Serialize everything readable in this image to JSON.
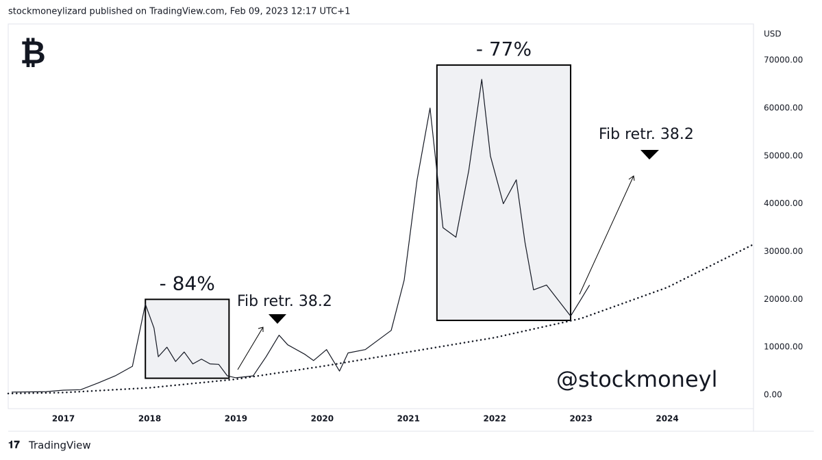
{
  "header": "stockmoneylizard published on TradingView.com, Feb 09, 2023 12:17 UTC+1",
  "footer": "TradingView",
  "symbol": "₿",
  "annotations": [
    "Fib retr. 38.2",
    "Fib retr. 38.2",
    "@stockmoneyl"
  ],
  "chart_data": {
    "type": "line",
    "y_unit": "USD",
    "x": [
      2016.4,
      2016.6,
      2016.8,
      2017.0,
      2017.2,
      2017.4,
      2017.6,
      2017.8,
      2017.95,
      2018.05,
      2018.1,
      2018.2,
      2018.3,
      2018.4,
      2018.5,
      2018.6,
      2018.7,
      2018.8,
      2018.9,
      2019.0,
      2019.2,
      2019.35,
      2019.5,
      2019.6,
      2019.8,
      2019.9,
      2020.05,
      2020.2,
      2020.3,
      2020.5,
      2020.65,
      2020.8,
      2020.95,
      2021.1,
      2021.25,
      2021.4,
      2021.55,
      2021.7,
      2021.85,
      2021.95,
      2022.1,
      2022.25,
      2022.35,
      2022.45,
      2022.6,
      2022.75,
      2022.88,
      2023.0,
      2023.1
    ],
    "series": [
      {
        "color": "#131722",
        "style": "solid",
        "x": "x",
        "values": [
          600,
          650,
          700,
          1000,
          1100,
          2500,
          4000,
          6000,
          19000,
          14000,
          8000,
          10000,
          7000,
          9000,
          6500,
          7500,
          6500,
          6400,
          4000,
          3600,
          4000,
          8000,
          12500,
          10500,
          8500,
          7200,
          9500,
          5000,
          8800,
          9500,
          11500,
          13500,
          24000,
          45000,
          60000,
          35000,
          33000,
          47000,
          66000,
          50000,
          40000,
          45000,
          32000,
          22000,
          23000,
          19500,
          16500,
          20000,
          23000
        ]
      },
      {
        "color": "#131722",
        "style": "dotted",
        "x": [
          2016.36,
          2017,
          2018,
          2019,
          2020,
          2021,
          2022,
          2023,
          2024,
          2025
        ],
        "values": [
          300,
          500,
          1500,
          3300,
          6000,
          9000,
          12000,
          16000,
          22500,
          31500
        ]
      }
    ],
    "boxes": [
      {
        "x": [
          2017.95,
          2018.92
        ],
        "y": [
          3500,
          20000
        ],
        "label": "- 84%"
      },
      {
        "x": [
          2021.33,
          2022.88
        ],
        "y": [
          15600,
          69000
        ],
        "label": "- 77%"
      }
    ],
    "xlim": [
      2016.36,
      2025.0
    ],
    "ylim": [
      -2860,
      77600
    ],
    "xticks": [
      2017,
      2018,
      2019,
      2020,
      2021,
      2022,
      2023,
      2024
    ],
    "yticks": [
      {
        "value": 0,
        "label": "0.00"
      },
      {
        "value": 10000,
        "label": "10000.00"
      },
      {
        "value": 20000,
        "label": "20000.00"
      },
      {
        "value": 30000,
        "label": "30000.00"
      },
      {
        "value": 40000,
        "label": "40000.00"
      },
      {
        "value": 50000,
        "label": "50000.00"
      },
      {
        "value": 60000,
        "label": "60000.00"
      },
      {
        "value": 70000,
        "label": "70000.00"
      }
    ]
  }
}
